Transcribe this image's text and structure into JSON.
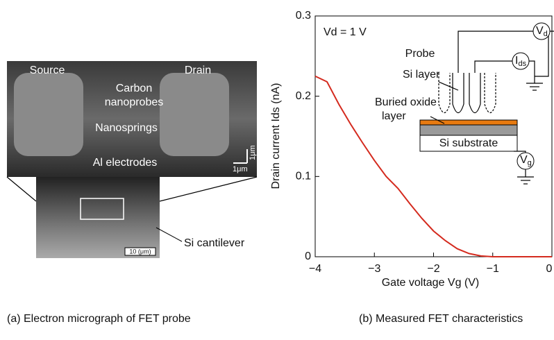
{
  "chart_data": {
    "type": "line",
    "xlabel": "Gate voltage Vg (V)",
    "ylabel": "Drain current Ids (nA)",
    "annotation": "Vd = 1 V",
    "x": [
      -4,
      -3.8,
      -3.6,
      -3.4,
      -3.2,
      -3.0,
      -2.8,
      -2.6,
      -2.4,
      -2.2,
      -2.0,
      -1.8,
      -1.6,
      -1.4,
      -1.2,
      -1.0,
      -0.5,
      0
    ],
    "series": [
      {
        "color": "#d42a1e",
        "values": [
          0.225,
          0.218,
          0.19,
          0.165,
          0.142,
          0.12,
          0.1,
          0.085,
          0.066,
          0.048,
          0.032,
          0.02,
          0.01,
          0.004,
          0.001,
          0,
          0,
          0
        ]
      }
    ],
    "xlim": [
      -4,
      0
    ],
    "ylim": [
      0,
      0.3
    ],
    "xticks": [
      {
        "value": -4,
        "label": "−4"
      },
      {
        "value": -3,
        "label": "−3"
      },
      {
        "value": -2,
        "label": "−2"
      },
      {
        "value": -1,
        "label": "−1"
      },
      0
    ],
    "yticks": [
      0,
      0.1,
      0.2,
      0.3
    ]
  },
  "inset": {
    "probe": "Probe",
    "si_layer": "Si layer",
    "oxide": [
      "Buried oxide",
      "layer"
    ],
    "substrate": "Si substrate",
    "vd": {
      "base": "V",
      "sub": "d"
    },
    "ids": {
      "base": "I",
      "sub": "ds"
    },
    "vg": {
      "base": "V",
      "sub": "g"
    }
  },
  "micrograph": {
    "source": "Source",
    "drain": "Drain",
    "nanoprobes": [
      "Carbon",
      "nanoprobes"
    ],
    "nanosprings": "Nanosprings",
    "electrodes": "Al electrodes",
    "scale_x": "1μm",
    "scale_y": "1μm",
    "scale_bottom": "10 (μm)",
    "cantilever": "Si cantilever"
  },
  "captions": [
    "(a) Electron micrograph of FET probe",
    "(b) Measured FET characteristics"
  ]
}
